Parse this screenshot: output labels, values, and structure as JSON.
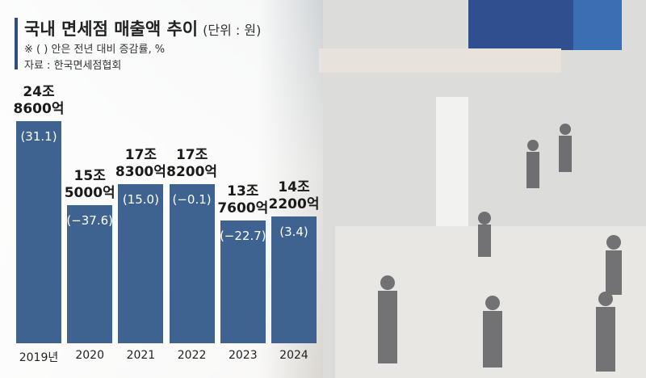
{
  "chart_data": {
    "type": "bar",
    "title": "국내 면세점 매출액 추이",
    "subtitle": "(단위 : 원)",
    "annotations": [
      "※ ( ) 안은 전년 대비 증감률, %",
      "자료 : 한국면세점협회"
    ],
    "categories": [
      "2019년",
      "2020",
      "2021",
      "2022",
      "2023",
      "2024"
    ],
    "series": [
      {
        "name": "매출액",
        "color": "#3f6391",
        "values": [
          248600,
          155000,
          178300,
          178200,
          137600,
          142200
        ],
        "value_labels": [
          "24조\n8600억",
          "15조\n5000억",
          "17조\n8300억",
          "17조\n8200억",
          "13조\n7600억",
          "14조\n2200억"
        ]
      },
      {
        "name": "증감률",
        "values": [
          31.1,
          -37.6,
          15.0,
          -0.1,
          -22.7,
          3.4
        ],
        "value_labels": [
          "(31.1)",
          "(−37.6)",
          "(15.0)",
          "(−0.1)",
          "(−22.7)",
          "(3.4)"
        ]
      }
    ]
  }
}
